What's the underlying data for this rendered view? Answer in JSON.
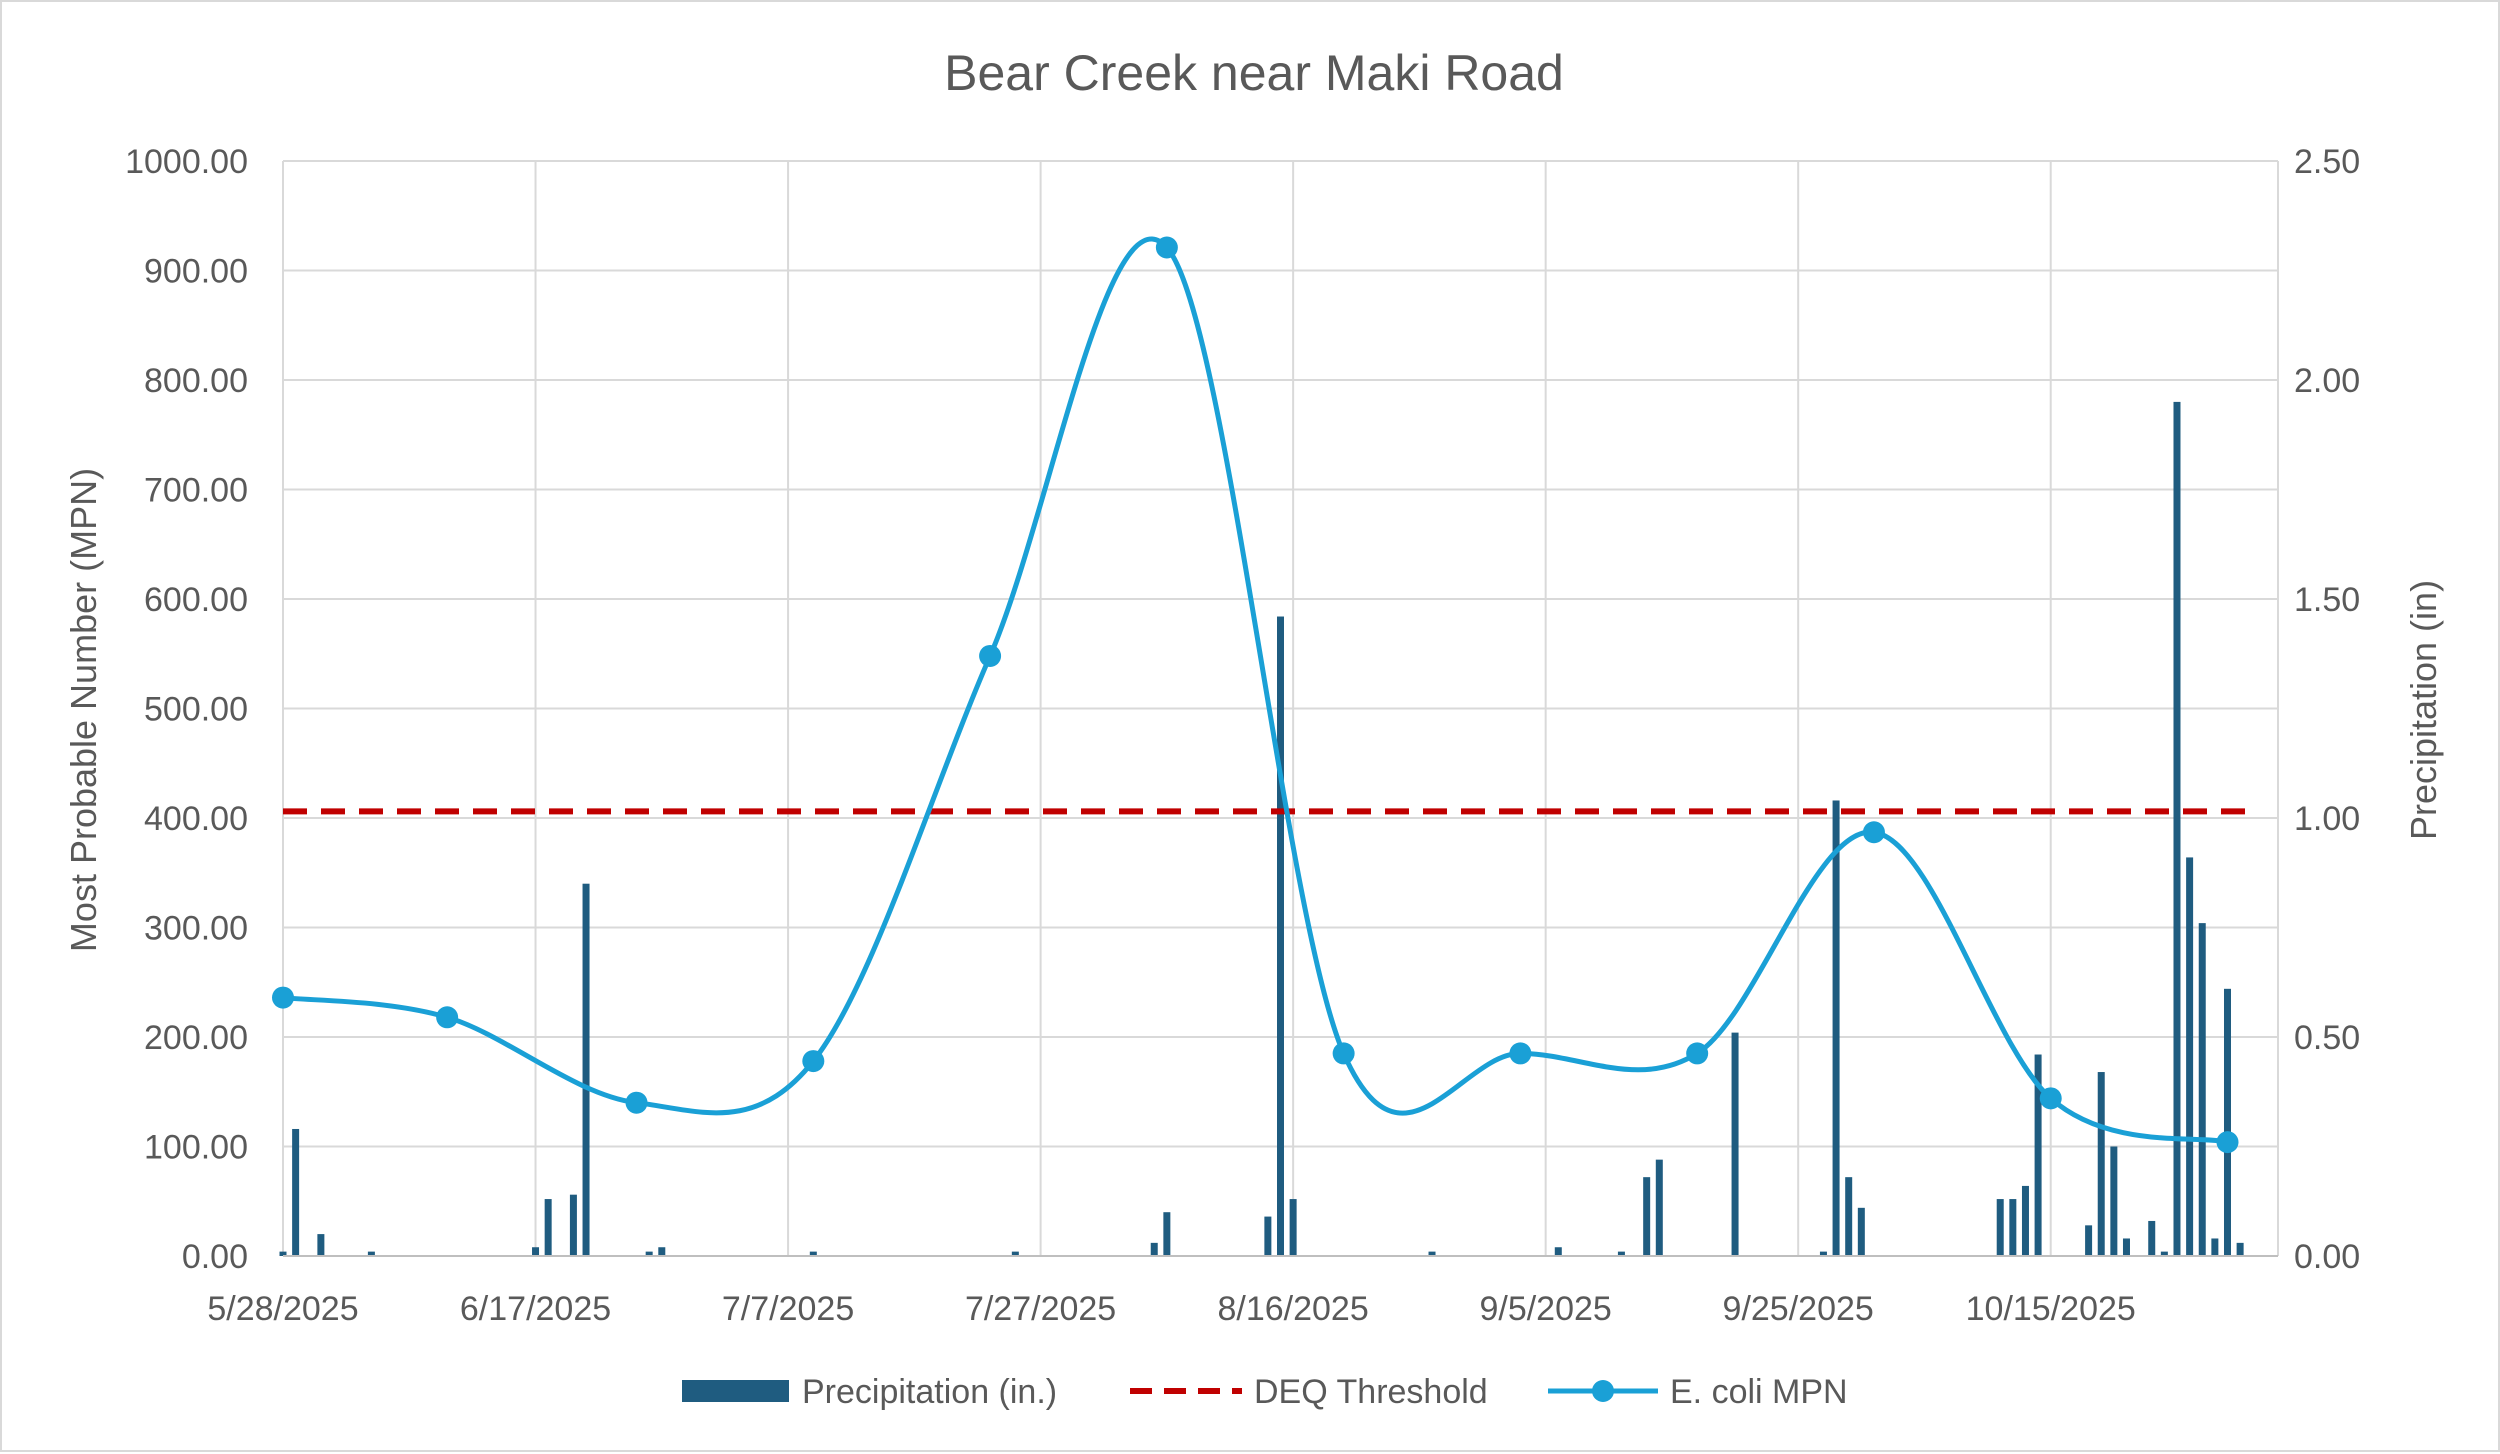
{
  "chart_data": {
    "type": "combo",
    "title": "Bear Creek near Maki Road",
    "ylabel": "Most Probable Number (MPN)",
    "y2label": "Precipitation (in)",
    "ylim": [
      0,
      1000
    ],
    "y2lim": [
      0,
      2.5
    ],
    "yticks": [
      "0.00",
      "100.00",
      "200.00",
      "300.00",
      "400.00",
      "500.00",
      "600.00",
      "700.00",
      "800.00",
      "900.00",
      "1000.00"
    ],
    "y2ticks": [
      "0.00",
      "0.50",
      "1.00",
      "1.50",
      "2.00",
      "2.50"
    ],
    "xlim": [
      "5/28/2025",
      "11/02/2025"
    ],
    "xticks": [
      "5/28/2025",
      "6/17/2025",
      "7/7/2025",
      "7/27/2025",
      "8/16/2025",
      "9/5/2025",
      "9/25/2025",
      "10/15/2025"
    ],
    "grid": true,
    "legend_position": "bottom",
    "series": [
      {
        "name": "Precipitation (in.)",
        "type": "bar",
        "axis": "secondary",
        "color": "#1f5c80",
        "points": [
          {
            "x": "5/28/2025",
            "y": 0.01
          },
          {
            "x": "5/29/2025",
            "y": 0.29
          },
          {
            "x": "5/31/2025",
            "y": 0.05
          },
          {
            "x": "6/4/2025",
            "y": 0.01
          },
          {
            "x": "6/17/2025",
            "y": 0.02
          },
          {
            "x": "6/18/2025",
            "y": 0.13
          },
          {
            "x": "6/20/2025",
            "y": 0.14
          },
          {
            "x": "6/21/2025",
            "y": 0.85
          },
          {
            "x": "6/26/2025",
            "y": 0.01
          },
          {
            "x": "6/27/2025",
            "y": 0.02
          },
          {
            "x": "7/9/2025",
            "y": 0.01
          },
          {
            "x": "7/25/2025",
            "y": 0.01
          },
          {
            "x": "8/5/2025",
            "y": 0.03
          },
          {
            "x": "8/6/2025",
            "y": 0.1
          },
          {
            "x": "8/14/2025",
            "y": 0.09
          },
          {
            "x": "8/15/2025",
            "y": 1.46
          },
          {
            "x": "8/16/2025",
            "y": 0.13
          },
          {
            "x": "8/27/2025",
            "y": 0.01
          },
          {
            "x": "9/6/2025",
            "y": 0.02
          },
          {
            "x": "9/11/2025",
            "y": 0.01
          },
          {
            "x": "9/13/2025",
            "y": 0.18
          },
          {
            "x": "9/14/2025",
            "y": 0.22
          },
          {
            "x": "9/20/2025",
            "y": 0.51
          },
          {
            "x": "9/27/2025",
            "y": 0.01
          },
          {
            "x": "9/28/2025",
            "y": 1.04
          },
          {
            "x": "9/29/2025",
            "y": 0.18
          },
          {
            "x": "9/30/2025",
            "y": 0.11
          },
          {
            "x": "10/11/2025",
            "y": 0.13
          },
          {
            "x": "10/12/2025",
            "y": 0.13
          },
          {
            "x": "10/13/2025",
            "y": 0.16
          },
          {
            "x": "10/14/2025",
            "y": 0.46
          },
          {
            "x": "10/18/2025",
            "y": 0.07
          },
          {
            "x": "10/19/2025",
            "y": 0.42
          },
          {
            "x": "10/20/2025",
            "y": 0.25
          },
          {
            "x": "10/21/2025",
            "y": 0.04
          },
          {
            "x": "10/23/2025",
            "y": 0.08
          },
          {
            "x": "10/24/2025",
            "y": 0.01
          },
          {
            "x": "10/25/2025",
            "y": 1.95
          },
          {
            "x": "10/26/2025",
            "y": 0.91
          },
          {
            "x": "10/27/2025",
            "y": 0.76
          },
          {
            "x": "10/28/2025",
            "y": 0.04
          },
          {
            "x": "10/29/2025",
            "y": 0.61
          },
          {
            "x": "10/30/2025",
            "y": 0.03
          }
        ]
      },
      {
        "name": "DEQ Threshold",
        "type": "line",
        "axis": "primary",
        "style": "dashed",
        "color": "#c00000",
        "points": [
          {
            "x": "5/28/2025",
            "y": 406
          },
          {
            "x": "10/31/2025",
            "y": 406
          }
        ]
      },
      {
        "name": "E. coli MPN",
        "type": "line",
        "axis": "primary",
        "smooth": true,
        "markers": true,
        "color": "#1aa0d6",
        "points": [
          {
            "x": "5/28/2025",
            "y": 236
          },
          {
            "x": "6/10/2025",
            "y": 218
          },
          {
            "x": "6/25/2025",
            "y": 140
          },
          {
            "x": "7/9/2025",
            "y": 178
          },
          {
            "x": "7/23/2025",
            "y": 548
          },
          {
            "x": "8/6/2025",
            "y": 921
          },
          {
            "x": "8/20/2025",
            "y": 185
          },
          {
            "x": "9/3/2025",
            "y": 185
          },
          {
            "x": "9/17/2025",
            "y": 185
          },
          {
            "x": "10/1/2025",
            "y": 387
          },
          {
            "x": "10/15/2025",
            "y": 144
          },
          {
            "x": "10/29/2025",
            "y": 104
          }
        ]
      }
    ]
  }
}
